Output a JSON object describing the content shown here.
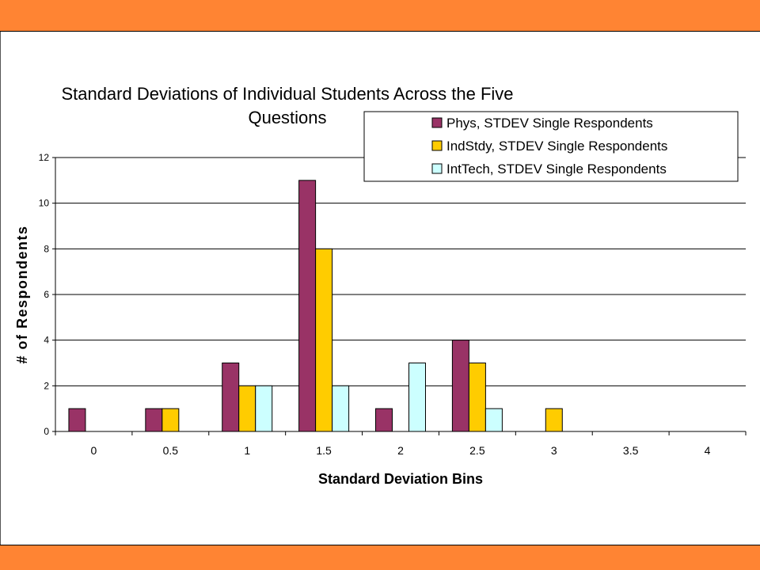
{
  "chart_data": {
    "type": "bar",
    "title": "Standard Deviations of Individual Students Across the Five Questions",
    "title_lines": [
      "Standard Deviations of Individual Students Across the Five",
      "Questions"
    ],
    "xlabel": "Standard Deviation Bins",
    "ylabel": "# of Respondents",
    "categories": [
      "0",
      "0.5",
      "1",
      "1.5",
      "2",
      "2.5",
      "3",
      "3.5",
      "4"
    ],
    "ylim": [
      0,
      12
    ],
    "yticks": [
      0,
      2,
      4,
      6,
      8,
      10,
      12
    ],
    "grid": true,
    "legend_position": "top-right",
    "series": [
      {
        "name": "Phys, STDEV Single Respondents",
        "color": "#993366",
        "values": [
          1,
          1,
          3,
          11,
          1,
          4,
          0,
          0,
          0
        ]
      },
      {
        "name": "IndStdy, STDEV Single Respondents",
        "color": "#ffcc00",
        "values": [
          0,
          1,
          2,
          8,
          0,
          3,
          1,
          0,
          0
        ]
      },
      {
        "name": "IntTech, STDEV Single Respondents",
        "color": "#ccffff",
        "values": [
          0,
          0,
          2,
          2,
          3,
          1,
          0,
          0,
          0
        ]
      }
    ]
  },
  "colors": {
    "banner": "#ff8433",
    "plot_background": "#ffffff",
    "gridline": "#000000"
  }
}
